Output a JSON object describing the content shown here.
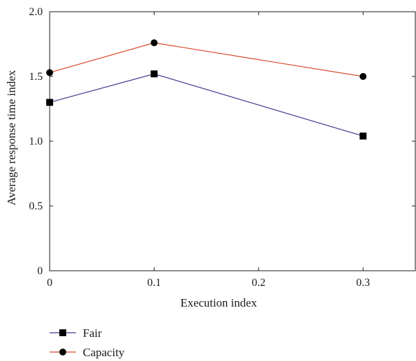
{
  "chart_data": {
    "type": "line",
    "title": "",
    "xlabel": "Execution index",
    "ylabel": "Average response time index",
    "xlim": [
      0,
      0.35
    ],
    "ylim": [
      0,
      2.0
    ],
    "xticks": [
      0,
      0.1,
      0.2,
      0.3
    ],
    "xtick_labels": [
      "0",
      "0.1",
      "0.2",
      "0.3"
    ],
    "yticks": [
      0,
      0.5,
      1.0,
      1.5,
      2.0
    ],
    "ytick_labels": [
      "0",
      "0.5",
      "1.0",
      "1.5",
      "2.0"
    ],
    "grid": false,
    "legend_position": "bottom-left",
    "series": [
      {
        "name": "Fair",
        "marker": "square",
        "color": "#3b3b8c",
        "x": [
          0,
          0.1,
          0.3
        ],
        "y": [
          1.3,
          1.52,
          1.04
        ]
      },
      {
        "name": "Capacity",
        "marker": "circle",
        "color": "#d9472b",
        "x": [
          0,
          0.1,
          0.3
        ],
        "y": [
          1.53,
          1.76,
          1.5
        ]
      }
    ]
  }
}
